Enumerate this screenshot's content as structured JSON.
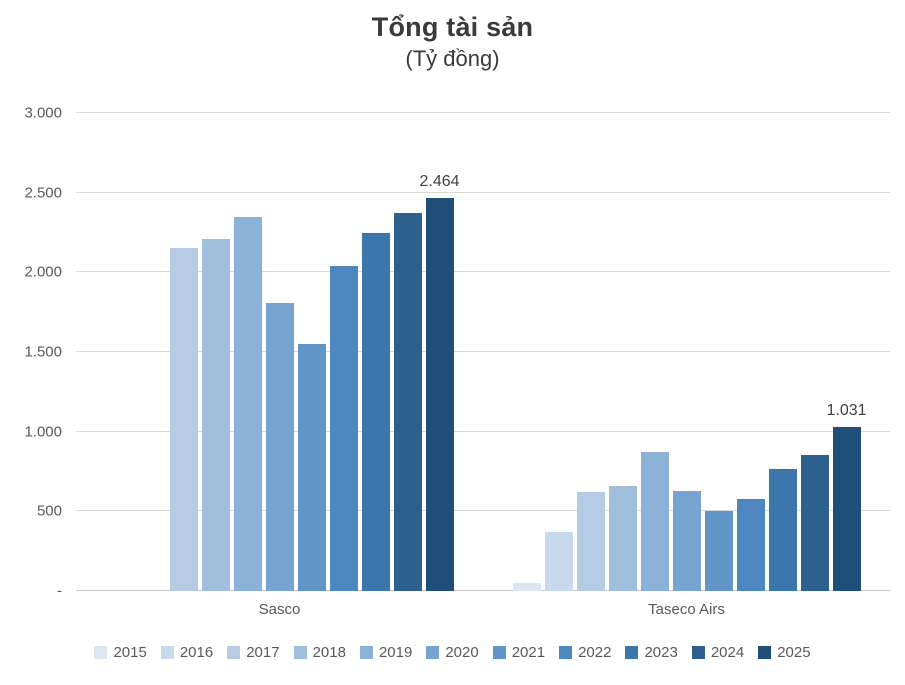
{
  "title": "Tổng tài sản",
  "subtitle": "(Tỷ đồng)",
  "chart_data": {
    "type": "bar",
    "title": "Tổng tài sản",
    "subtitle": "(Tỷ đồng)",
    "unit": "Tỷ đồng",
    "categories": [
      "Sasco",
      "Taseco Airs"
    ],
    "series": [
      {
        "name": "2015",
        "color": "#dce6f2",
        "values": [
          null,
          50
        ]
      },
      {
        "name": "2016",
        "color": "#c9d9ed",
        "values": [
          null,
          370
        ]
      },
      {
        "name": "2017",
        "color": "#b5cbe3",
        "values": [
          2150,
          620
        ]
      },
      {
        "name": "2018",
        "color": "#a1bedd",
        "values": [
          2210,
          660
        ]
      },
      {
        "name": "2019",
        "color": "#8cb1d6",
        "values": [
          2350,
          870
        ]
      },
      {
        "name": "2020",
        "color": "#76a3cf",
        "values": [
          1810,
          625
        ]
      },
      {
        "name": "2021",
        "color": "#6195c7",
        "values": [
          1550,
          505
        ]
      },
      {
        "name": "2022",
        "color": "#4d87bd",
        "values": [
          2040,
          580
        ]
      },
      {
        "name": "2023",
        "color": "#3d76aa",
        "values": [
          2250,
          765
        ]
      },
      {
        "name": "2024",
        "color": "#2e608d",
        "values": [
          2370,
          855
        ]
      },
      {
        "name": "2025",
        "color": "#1f4e79",
        "values": [
          2464,
          1031
        ]
      }
    ],
    "data_labels": [
      {
        "category_index": 0,
        "series_name": "2025",
        "text": "2.464"
      },
      {
        "category_index": 1,
        "series_name": "2025",
        "text": "1.031"
      }
    ],
    "y_axis": {
      "min": 0,
      "max": 3000,
      "step": 500,
      "tick_labels": [
        "-",
        "500",
        "1.000",
        "1.500",
        "2.000",
        "2.500",
        "3.000"
      ]
    },
    "grid": true,
    "legend_position": "bottom"
  }
}
